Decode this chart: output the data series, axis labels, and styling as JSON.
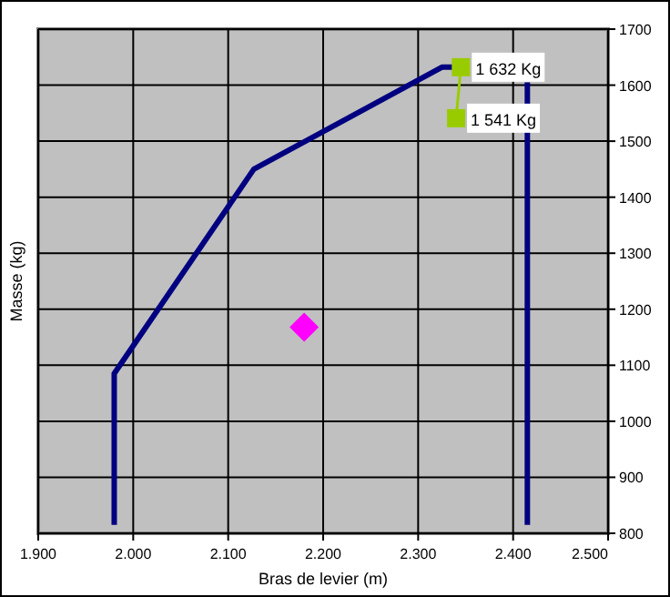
{
  "chart_data": {
    "type": "line",
    "xlabel": "Bras de levier (m)",
    "ylabel": "Masse (kg)",
    "xlim": [
      1.9,
      2.5
    ],
    "xticks": [
      {
        "value": 1.9,
        "label": "1.900"
      },
      {
        "value": 2.0,
        "label": "2.000"
      },
      {
        "value": 2.1,
        "label": "2.100"
      },
      {
        "value": 2.2,
        "label": "2.200"
      },
      {
        "value": 2.3,
        "label": "2.300"
      },
      {
        "value": 2.4,
        "label": "2.400"
      },
      {
        "value": 2.5,
        "label": "2.500"
      }
    ],
    "ylim": [
      800,
      1700
    ],
    "yticks": [
      800,
      900,
      1000,
      1100,
      1200,
      1300,
      1400,
      1500,
      1600,
      1700
    ],
    "grid": true,
    "series": [
      {
        "color": "#000080",
        "x": [
          1.98,
          1.98,
          2.127,
          2.325,
          2.345
        ],
        "values": [
          815,
          1085,
          1450,
          1632,
          1632
        ],
        "marker": "none"
      },
      {
        "color": "#000080",
        "x": [
          2.415,
          2.415
        ],
        "values": [
          815,
          1605
        ],
        "marker": "none"
      },
      {
        "color": "#99cc00",
        "x": [
          2.345,
          2.34
        ],
        "values": [
          1632,
          1541
        ],
        "marker": "square",
        "value_labels": [
          "1 632 Kg",
          "1 541 Kg"
        ]
      },
      {
        "type": "scatter",
        "color": "#ff00ff",
        "x": [
          2.18
        ],
        "values": [
          1168
        ],
        "marker": "diamond"
      }
    ]
  }
}
